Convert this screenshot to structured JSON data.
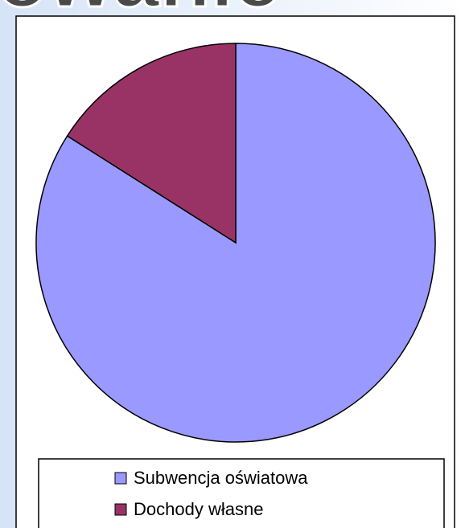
{
  "heading_fragment": "owanie",
  "chart_data": {
    "type": "pie",
    "categories": [
      "Subwencja oświatowa",
      "Dochody własne"
    ],
    "values": [
      84,
      16
    ],
    "colors": [
      "#9999ff",
      "#993366"
    ],
    "legend": "bottom"
  }
}
